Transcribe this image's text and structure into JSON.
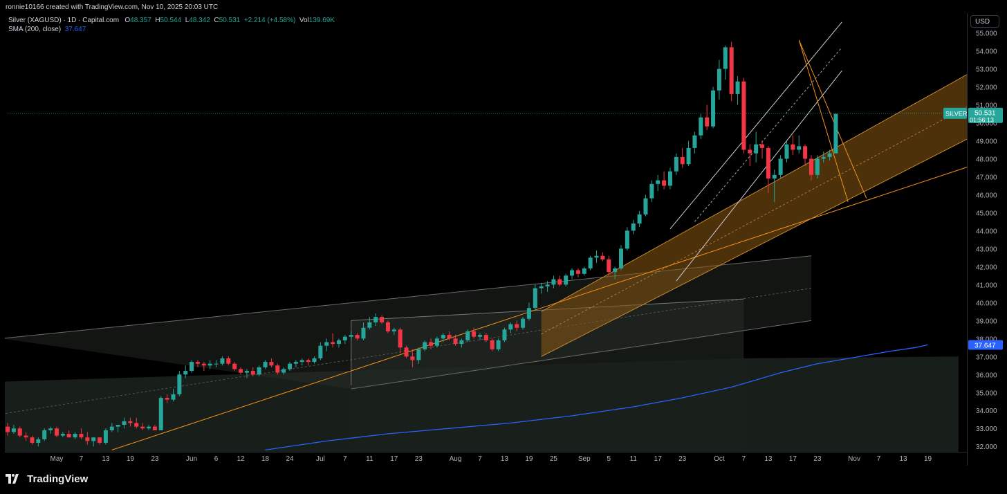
{
  "attribution": "ronnie10166 created with TradingView.com, Nov 10, 2025 20:03 UTC",
  "symbol": {
    "title": "Silver (XAGUSD) · 1D · Capital.com",
    "open_label": "O",
    "open": "48.357",
    "high_label": "H",
    "high": "50.544",
    "low_label": "L",
    "low": "48.342",
    "close_label": "C",
    "close": "50.531",
    "change": "+2.214 (+4.58%)",
    "vol_label": "Vol",
    "vol": "139.69K"
  },
  "sma": {
    "label": "SMA (200, close)",
    "value": "37.647"
  },
  "currency_button": "USD",
  "footer_brand": "TradingView",
  "colors": {
    "up": "#26a69a",
    "down": "#f23645",
    "sma": "#2962ff",
    "orange": "#f7931a",
    "background": "#000000"
  },
  "chart_data": {
    "type": "candlestick",
    "ylim": [
      31.7,
      56.1
    ],
    "y_ticks": [
      "32.000",
      "33.000",
      "34.000",
      "35.000",
      "36.000",
      "37.000",
      "38.000",
      "39.000",
      "40.000",
      "41.000",
      "42.000",
      "43.000",
      "44.000",
      "45.000",
      "46.000",
      "47.000",
      "48.000",
      "49.000",
      "50.000",
      "51.000",
      "52.000",
      "53.000",
      "54.000",
      "55.000"
    ],
    "x_ticks": [
      {
        "label": "May",
        "i": 8
      },
      {
        "label": "7",
        "i": 12
      },
      {
        "label": "13",
        "i": 16
      },
      {
        "label": "19",
        "i": 20
      },
      {
        "label": "23",
        "i": 24
      },
      {
        "label": "Jun",
        "i": 30
      },
      {
        "label": "6",
        "i": 34
      },
      {
        "label": "12",
        "i": 38
      },
      {
        "label": "18",
        "i": 42
      },
      {
        "label": "24",
        "i": 46
      },
      {
        "label": "Jul",
        "i": 51
      },
      {
        "label": "7",
        "i": 55
      },
      {
        "label": "11",
        "i": 59
      },
      {
        "label": "17",
        "i": 63
      },
      {
        "label": "23",
        "i": 67
      },
      {
        "label": "Aug",
        "i": 73
      },
      {
        "label": "7",
        "i": 77
      },
      {
        "label": "13",
        "i": 81
      },
      {
        "label": "19",
        "i": 85
      },
      {
        "label": "25",
        "i": 89
      },
      {
        "label": "Sep",
        "i": 94
      },
      {
        "label": "5",
        "i": 98
      },
      {
        "label": "11",
        "i": 102
      },
      {
        "label": "17",
        "i": 106
      },
      {
        "label": "23",
        "i": 110
      },
      {
        "label": "Oct",
        "i": 116
      },
      {
        "label": "7",
        "i": 120
      },
      {
        "label": "13",
        "i": 124
      },
      {
        "label": "17",
        "i": 128
      },
      {
        "label": "23",
        "i": 132
      },
      {
        "label": "Nov",
        "i": 138
      },
      {
        "label": "7",
        "i": 142
      },
      {
        "label": "13",
        "i": 146
      },
      {
        "label": "19",
        "i": 150
      }
    ],
    "candles": [
      [
        33.1,
        33.3,
        32.6,
        32.8
      ],
      [
        32.8,
        33.2,
        32.7,
        33.0
      ],
      [
        33.0,
        33.1,
        32.5,
        32.6
      ],
      [
        32.6,
        32.8,
        32.3,
        32.5
      ],
      [
        32.5,
        32.6,
        32.1,
        32.2
      ],
      [
        32.2,
        32.5,
        32.0,
        32.4
      ],
      [
        32.4,
        33.0,
        32.3,
        32.9
      ],
      [
        32.9,
        33.1,
        32.7,
        33.0
      ],
      [
        33.0,
        33.1,
        32.5,
        32.6
      ],
      [
        32.6,
        32.8,
        32.5,
        32.7
      ],
      [
        32.7,
        32.9,
        32.5,
        32.5
      ],
      [
        32.5,
        32.8,
        32.4,
        32.7
      ],
      [
        32.7,
        33.0,
        32.4,
        32.5
      ],
      [
        32.5,
        32.8,
        32.1,
        32.3
      ],
      [
        32.3,
        32.5,
        32.0,
        32.5
      ],
      [
        32.5,
        32.5,
        32.1,
        32.2
      ],
      [
        32.2,
        33.0,
        32.1,
        32.9
      ],
      [
        32.9,
        33.3,
        32.8,
        33.1
      ],
      [
        33.1,
        33.2,
        32.8,
        33.2
      ],
      [
        33.2,
        33.6,
        33.0,
        33.4
      ],
      [
        33.4,
        33.6,
        33.1,
        33.3
      ],
      [
        33.3,
        33.6,
        33.0,
        33.1
      ],
      [
        33.1,
        33.3,
        32.9,
        33.0
      ],
      [
        33.0,
        33.2,
        32.9,
        33.1
      ],
      [
        33.1,
        33.2,
        32.9,
        32.9
      ],
      [
        32.9,
        34.8,
        32.9,
        34.7
      ],
      [
        34.7,
        34.9,
        34.4,
        34.6
      ],
      [
        34.6,
        35.2,
        34.5,
        34.9
      ],
      [
        34.9,
        36.2,
        34.8,
        36.0
      ],
      [
        36.0,
        36.5,
        35.8,
        36.2
      ],
      [
        36.2,
        36.8,
        36.1,
        36.7
      ],
      [
        36.7,
        36.8,
        36.4,
        36.6
      ],
      [
        36.6,
        36.7,
        36.2,
        36.5
      ],
      [
        36.5,
        36.8,
        36.3,
        36.6
      ],
      [
        36.6,
        36.8,
        36.4,
        36.6
      ],
      [
        36.6,
        37.0,
        36.5,
        36.9
      ],
      [
        36.9,
        37.0,
        36.5,
        36.6
      ],
      [
        36.6,
        36.7,
        36.2,
        36.3
      ],
      [
        36.3,
        36.4,
        36.0,
        36.1
      ],
      [
        36.1,
        36.3,
        35.8,
        36.2
      ],
      [
        36.2,
        36.4,
        35.9,
        36.0
      ],
      [
        36.0,
        36.5,
        35.9,
        36.4
      ],
      [
        36.4,
        36.8,
        36.3,
        36.7
      ],
      [
        36.7,
        36.9,
        36.4,
        36.5
      ],
      [
        36.5,
        36.6,
        36.0,
        36.1
      ],
      [
        36.1,
        36.4,
        36.0,
        36.3
      ],
      [
        36.3,
        36.7,
        36.2,
        36.6
      ],
      [
        36.6,
        36.8,
        36.4,
        36.7
      ],
      [
        36.7,
        36.9,
        36.5,
        36.8
      ],
      [
        36.8,
        36.9,
        36.5,
        36.7
      ],
      [
        36.7,
        37.0,
        36.6,
        36.9
      ],
      [
        36.9,
        37.8,
        36.8,
        37.6
      ],
      [
        37.6,
        38.0,
        37.3,
        37.8
      ],
      [
        37.8,
        38.3,
        37.5,
        37.7
      ],
      [
        37.7,
        38.0,
        37.5,
        37.9
      ],
      [
        37.9,
        38.2,
        37.7,
        38.1
      ],
      [
        38.1,
        38.4,
        37.9,
        38.2
      ],
      [
        38.2,
        38.3,
        37.9,
        38.0
      ],
      [
        38.0,
        38.9,
        37.9,
        38.6
      ],
      [
        38.6,
        39.2,
        38.5,
        38.9
      ],
      [
        38.9,
        39.4,
        38.7,
        39.2
      ],
      [
        39.2,
        39.3,
        38.8,
        38.9
      ],
      [
        38.9,
        39.0,
        38.3,
        38.4
      ],
      [
        38.4,
        38.6,
        38.2,
        38.5
      ],
      [
        38.5,
        38.6,
        37.2,
        37.5
      ],
      [
        37.5,
        37.6,
        36.9,
        37.0
      ],
      [
        37.0,
        37.4,
        36.4,
        36.8
      ],
      [
        36.8,
        37.5,
        36.6,
        37.4
      ],
      [
        37.4,
        37.9,
        37.3,
        37.8
      ],
      [
        37.8,
        38.0,
        37.4,
        37.6
      ],
      [
        37.6,
        38.1,
        37.5,
        38.0
      ],
      [
        38.0,
        38.3,
        37.8,
        38.2
      ],
      [
        38.2,
        38.4,
        37.9,
        38.0
      ],
      [
        38.0,
        38.2,
        37.6,
        37.7
      ],
      [
        37.7,
        38.0,
        37.5,
        37.9
      ],
      [
        37.9,
        38.5,
        37.8,
        38.4
      ],
      [
        38.4,
        38.6,
        38.0,
        38.1
      ],
      [
        38.1,
        38.3,
        37.9,
        38.2
      ],
      [
        38.2,
        38.3,
        37.8,
        37.9
      ],
      [
        37.9,
        38.0,
        37.3,
        37.4
      ],
      [
        37.4,
        38.0,
        37.3,
        37.9
      ],
      [
        37.9,
        38.6,
        37.8,
        38.5
      ],
      [
        38.5,
        38.9,
        38.3,
        38.8
      ],
      [
        38.8,
        39.0,
        38.4,
        38.6
      ],
      [
        38.6,
        39.2,
        38.5,
        39.1
      ],
      [
        39.1,
        40.0,
        39.0,
        39.7
      ],
      [
        39.7,
        41.0,
        39.6,
        40.8
      ],
      [
        40.8,
        41.1,
        40.5,
        40.9
      ],
      [
        40.9,
        41.2,
        40.6,
        41.0
      ],
      [
        41.0,
        41.5,
        40.8,
        41.3
      ],
      [
        41.3,
        41.5,
        40.9,
        41.0
      ],
      [
        41.0,
        41.6,
        40.9,
        41.5
      ],
      [
        41.5,
        41.9,
        41.3,
        41.8
      ],
      [
        41.8,
        41.9,
        41.4,
        41.6
      ],
      [
        41.6,
        42.0,
        41.5,
        41.9
      ],
      [
        41.9,
        42.6,
        41.8,
        42.5
      ],
      [
        42.5,
        42.9,
        42.2,
        42.6
      ],
      [
        42.6,
        42.8,
        42.3,
        42.4
      ],
      [
        42.4,
        42.6,
        41.5,
        41.7
      ],
      [
        41.7,
        42.0,
        41.3,
        41.9
      ],
      [
        41.9,
        43.2,
        41.8,
        43.0
      ],
      [
        43.0,
        44.2,
        42.9,
        44.0
      ],
      [
        44.0,
        44.6,
        43.8,
        44.4
      ],
      [
        44.4,
        45.1,
        44.2,
        44.9
      ],
      [
        44.9,
        46.0,
        44.8,
        45.8
      ],
      [
        45.8,
        46.8,
        45.6,
        46.6
      ],
      [
        46.6,
        47.1,
        46.2,
        46.8
      ],
      [
        46.8,
        47.3,
        46.3,
        46.5
      ],
      [
        46.5,
        47.5,
        46.3,
        47.3
      ],
      [
        47.3,
        48.3,
        47.1,
        48.1
      ],
      [
        48.1,
        48.6,
        47.5,
        47.7
      ],
      [
        47.7,
        49.0,
        47.6,
        48.6
      ],
      [
        48.6,
        49.5,
        48.3,
        49.3
      ],
      [
        49.3,
        50.5,
        49.1,
        50.3
      ],
      [
        50.3,
        51.0,
        49.6,
        49.8
      ],
      [
        49.8,
        52.0,
        49.7,
        51.8
      ],
      [
        51.8,
        53.5,
        51.3,
        53.0
      ],
      [
        53.0,
        54.3,
        52.4,
        54.2
      ],
      [
        54.2,
        54.5,
        51.2,
        51.6
      ],
      [
        51.6,
        52.6,
        51.0,
        52.3
      ],
      [
        52.3,
        52.5,
        48.3,
        48.5
      ],
      [
        48.5,
        48.8,
        47.6,
        48.3
      ],
      [
        48.3,
        49.5,
        47.8,
        48.8
      ],
      [
        48.8,
        49.0,
        48.0,
        48.6
      ],
      [
        48.6,
        48.7,
        46.1,
        46.9
      ],
      [
        46.9,
        47.4,
        45.6,
        47.1
      ],
      [
        47.1,
        48.2,
        46.9,
        48.0
      ],
      [
        48.0,
        49.0,
        47.8,
        48.8
      ],
      [
        48.8,
        49.3,
        48.2,
        48.5
      ],
      [
        48.5,
        49.3,
        48.3,
        48.7
      ],
      [
        48.7,
        48.8,
        47.6,
        48.0
      ],
      [
        48.0,
        48.2,
        46.8,
        47.1
      ],
      [
        47.1,
        48.2,
        46.9,
        48.0
      ],
      [
        48.0,
        48.4,
        47.8,
        48.1
      ],
      [
        48.1,
        48.5,
        47.9,
        48.3
      ],
      [
        48.3,
        50.5,
        48.3,
        50.5
      ]
    ],
    "sma200": [
      [
        42,
        31.8
      ],
      [
        52,
        32.3
      ],
      [
        62,
        32.7
      ],
      [
        72,
        33.0
      ],
      [
        82,
        33.3
      ],
      [
        92,
        33.7
      ],
      [
        102,
        34.2
      ],
      [
        110,
        34.7
      ],
      [
        118,
        35.3
      ],
      [
        126,
        36.1
      ],
      [
        132,
        36.6
      ],
      [
        138,
        36.95
      ],
      [
        144,
        37.3
      ],
      [
        148,
        37.5
      ],
      [
        150,
        37.65
      ]
    ],
    "price_marker": {
      "label": "SILVER",
      "price": "50.531",
      "countdown": "01:56:13"
    },
    "sma_marker": "37.647"
  }
}
